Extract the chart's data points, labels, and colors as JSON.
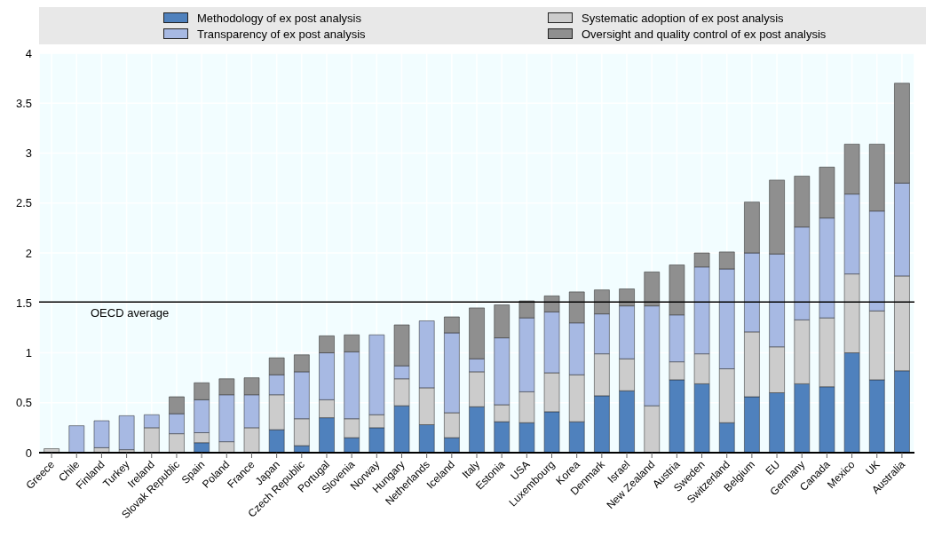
{
  "chart_data": {
    "type": "bar",
    "stacked": true,
    "grid": true,
    "legend": "top",
    "categories": [
      "Greece",
      "Chile",
      "Finland",
      "Turkey",
      "Ireland",
      "Slovak Republic",
      "Spain",
      "Poland",
      "France",
      "Japan",
      "Czech Republic",
      "Portugal",
      "Slovenia",
      "Norway",
      "Hungary",
      "Netherlands",
      "Iceland",
      "Italy",
      "Estonia",
      "USA",
      "Luxembourg",
      "Korea",
      "Denmark",
      "Israel",
      "New Zealand",
      "Austria",
      "Sweden",
      "Switzerland",
      "Belgium",
      "EU",
      "Germany",
      "Canada",
      "Mexico",
      "UK",
      "Australia"
    ],
    "series": [
      {
        "name": "Methodology of ex post analysis",
        "color": "#4f81bd",
        "values": [
          0,
          0,
          0,
          0,
          0,
          0,
          0.1,
          0,
          0,
          0.23,
          0.07,
          0.35,
          0.15,
          0.25,
          0.47,
          0.28,
          0.15,
          0.46,
          0.31,
          0.3,
          0.41,
          0.31,
          0.57,
          0.62,
          0,
          0.73,
          0.69,
          0.3,
          0.56,
          0.6,
          0.69,
          0.66,
          1.0,
          0.73,
          0.82
        ]
      },
      {
        "name": "Systematic adoption of ex post analysis",
        "color": "#cccccc",
        "values": [
          0.04,
          0,
          0.05,
          0.03,
          0.25,
          0.19,
          0.1,
          0.11,
          0.25,
          0.35,
          0.27,
          0.18,
          0.19,
          0.13,
          0.27,
          0.37,
          0.25,
          0.35,
          0.17,
          0.31,
          0.39,
          0.47,
          0.42,
          0.32,
          0.47,
          0.18,
          0.3,
          0.54,
          0.65,
          0.46,
          0.64,
          0.69,
          0.79,
          0.69,
          0.95
        ]
      },
      {
        "name": "Transparency of ex post analysis",
        "color": "#a7b9e3",
        "values": [
          0,
          0.27,
          0.27,
          0.34,
          0.13,
          0.2,
          0.33,
          0.47,
          0.33,
          0.2,
          0.47,
          0.47,
          0.67,
          0.8,
          0.13,
          0.67,
          0.8,
          0.13,
          0.67,
          0.74,
          0.61,
          0.52,
          0.4,
          0.53,
          1.0,
          0.47,
          0.87,
          1.0,
          0.79,
          0.93,
          0.93,
          1.0,
          0.8,
          1.0,
          0.93
        ]
      },
      {
        "name": "Oversight and quality control of ex post analysis",
        "color": "#8f8f8f",
        "values": [
          0,
          0,
          0,
          0,
          0,
          0.17,
          0.17,
          0.16,
          0.17,
          0.17,
          0.17,
          0.17,
          0.17,
          0,
          0.41,
          0,
          0.16,
          0.51,
          0.33,
          0.17,
          0.16,
          0.31,
          0.24,
          0.17,
          0.34,
          0.5,
          0.14,
          0.17,
          0.51,
          0.74,
          0.51,
          0.51,
          0.5,
          0.67,
          1.0
        ]
      }
    ],
    "ylim": [
      0,
      4
    ],
    "yticks": [
      0,
      0.5,
      1,
      1.5,
      2,
      2.5,
      3,
      3.5,
      4
    ],
    "ref_lines": [
      {
        "axis": "y",
        "value": 1.51,
        "label": "OECD average",
        "color": "#000000"
      }
    ]
  }
}
